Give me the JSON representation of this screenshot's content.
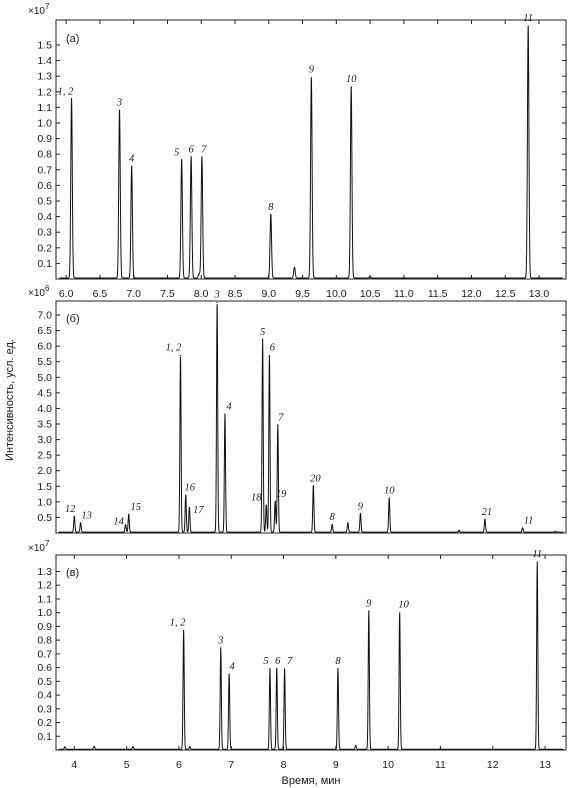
{
  "ylabel_shared": "Интенсивность, усл. ед.",
  "xlabel_shared": "Время, мин",
  "chart_data": [
    {
      "type": "line",
      "panel": "(а)",
      "multiplier": "×10",
      "multiplier_exp": "7",
      "xlim": [
        5.85,
        13.4
      ],
      "ylim": [
        0,
        1.66
      ],
      "x_ticks": [
        6.0,
        6.5,
        7.0,
        7.5,
        8.0,
        8.5,
        9.0,
        9.5,
        10.0,
        10.5,
        11.0,
        11.5,
        12.0,
        12.5,
        13.0
      ],
      "x_tick_labels": [
        "6.0",
        "6.5",
        "7.0",
        "7.5",
        "8.0",
        "8.5",
        "9.0",
        "9.5",
        "10.0",
        "10.5",
        "11.0",
        "11.5",
        "12.0",
        "12.5",
        "13.0"
      ],
      "y_ticks": [
        0.1,
        0.2,
        0.3,
        0.4,
        0.5,
        0.6,
        0.7,
        0.8,
        0.9,
        1.0,
        1.1,
        1.2,
        1.3,
        1.4,
        1.5
      ],
      "y_tick_labels": [
        "0.1",
        "0.2",
        "0.3",
        "0.4",
        "0.5",
        "0.6",
        "0.7",
        "0.8",
        "0.9",
        "1.0",
        "1.1",
        "1.2",
        "1.3",
        "1.4",
        "1.5"
      ],
      "peaks": [
        {
          "x": 6.08,
          "y": 1.15,
          "label": "1, 2"
        },
        {
          "x": 6.79,
          "y": 1.08,
          "label": "3"
        },
        {
          "x": 6.97,
          "y": 0.72,
          "label": "4"
        },
        {
          "x": 7.71,
          "y": 0.76,
          "label": "5"
        },
        {
          "x": 7.85,
          "y": 0.78,
          "label": "6"
        },
        {
          "x": 8.01,
          "y": 0.78,
          "label": "7"
        },
        {
          "x": 9.03,
          "y": 0.41,
          "label": "8"
        },
        {
          "x": 9.63,
          "y": 1.29,
          "label": "9"
        },
        {
          "x": 10.22,
          "y": 1.23,
          "label": "10"
        },
        {
          "x": 12.84,
          "y": 1.62,
          "label": "11"
        }
      ],
      "minor_peaks": [
        {
          "x": 7.97,
          "y": 0.03
        },
        {
          "x": 9.38,
          "y": 0.07
        },
        {
          "x": 10.5,
          "y": 0.008
        }
      ]
    },
    {
      "type": "line",
      "panel": "(б)",
      "multiplier": "×10",
      "multiplier_exp": "6",
      "xlim": [
        3.65,
        13.4
      ],
      "ylim": [
        0,
        7.45
      ],
      "x_ticks": [],
      "x_tick_labels": [],
      "y_ticks": [
        0.5,
        1.0,
        1.5,
        2.0,
        2.5,
        3.0,
        3.5,
        4.0,
        4.5,
        5.0,
        5.5,
        6.0,
        6.5,
        7.0
      ],
      "y_tick_labels": [
        "0.5",
        "1.0",
        "1.5",
        "2.0",
        "2.5",
        "3.0",
        "3.5",
        "4.0",
        "4.5",
        "5.0",
        "5.5",
        "6.0",
        "6.5",
        "7.0"
      ],
      "peaks": [
        {
          "x": 4.0,
          "y": 0.52,
          "label": "12"
        },
        {
          "x": 4.12,
          "y": 0.3,
          "label": "13"
        },
        {
          "x": 4.98,
          "y": 0.24,
          "label": "14"
        },
        {
          "x": 5.04,
          "y": 0.58,
          "label": "15"
        },
        {
          "x": 6.03,
          "y": 5.7,
          "label": "1, 2"
        },
        {
          "x": 6.13,
          "y": 1.2,
          "label": "16"
        },
        {
          "x": 6.2,
          "y": 0.8,
          "label": "17"
        },
        {
          "x": 6.73,
          "y": 7.4,
          "label": "3"
        },
        {
          "x": 6.88,
          "y": 3.8,
          "label": "4"
        },
        {
          "x": 7.6,
          "y": 6.2,
          "label": "5"
        },
        {
          "x": 7.67,
          "y": 0.88,
          "label": "18"
        },
        {
          "x": 7.73,
          "y": 5.7,
          "label": "6"
        },
        {
          "x": 7.84,
          "y": 1.0,
          "label": "19"
        },
        {
          "x": 7.89,
          "y": 3.45,
          "label": "7"
        },
        {
          "x": 8.57,
          "y": 1.5,
          "label": "20"
        },
        {
          "x": 8.93,
          "y": 0.25,
          "label": "8"
        },
        {
          "x": 9.47,
          "y": 0.6,
          "label": "9"
        },
        {
          "x": 10.02,
          "y": 1.1,
          "label": "10"
        },
        {
          "x": 11.85,
          "y": 0.42,
          "label": "21"
        },
        {
          "x": 12.57,
          "y": 0.14,
          "label": "11"
        }
      ],
      "minor_peaks": [
        {
          "x": 9.23,
          "y": 0.3
        },
        {
          "x": 11.36,
          "y": 0.06
        },
        {
          "x": 13.2,
          "y": 0.03
        }
      ]
    },
    {
      "type": "line",
      "panel": "(в)",
      "multiplier": "×10",
      "multiplier_exp": "7",
      "xlim": [
        3.65,
        13.4
      ],
      "ylim": [
        0,
        1.42
      ],
      "x_ticks": [
        4,
        5,
        6,
        7,
        8,
        9,
        10,
        11,
        12,
        13
      ],
      "x_tick_labels": [
        "4",
        "5",
        "6",
        "7",
        "8",
        "9",
        "10",
        "11",
        "12",
        "13"
      ],
      "y_ticks": [
        0.1,
        0.2,
        0.3,
        0.4,
        0.5,
        0.6,
        0.7,
        0.8,
        0.9,
        1.0,
        1.1,
        1.2,
        1.3
      ],
      "y_tick_labels": [
        "0.1",
        "0.2",
        "0.3",
        "0.4",
        "0.5",
        "0.6",
        "0.7",
        "0.8",
        "0.9",
        "1.0",
        "1.1",
        "1.2",
        "1.3"
      ],
      "peaks": [
        {
          "x": 6.09,
          "y": 0.87,
          "label": "1, 2"
        },
        {
          "x": 6.8,
          "y": 0.74,
          "label": "3"
        },
        {
          "x": 6.96,
          "y": 0.55,
          "label": "4"
        },
        {
          "x": 7.74,
          "y": 0.59,
          "label": "5"
        },
        {
          "x": 7.87,
          "y": 0.59,
          "label": "6"
        },
        {
          "x": 8.02,
          "y": 0.59,
          "label": "7"
        },
        {
          "x": 9.04,
          "y": 0.59,
          "label": "8"
        },
        {
          "x": 9.63,
          "y": 1.01,
          "label": "9"
        },
        {
          "x": 10.22,
          "y": 1.0,
          "label": "10"
        },
        {
          "x": 12.85,
          "y": 1.37,
          "label": "11"
        }
      ],
      "minor_peaks": [
        {
          "x": 3.82,
          "y": 0.018
        },
        {
          "x": 4.38,
          "y": 0.022
        },
        {
          "x": 5.12,
          "y": 0.02
        },
        {
          "x": 6.21,
          "y": 0.02
        },
        {
          "x": 9.38,
          "y": 0.028
        },
        {
          "x": 11.0,
          "y": 0.004
        }
      ]
    }
  ]
}
